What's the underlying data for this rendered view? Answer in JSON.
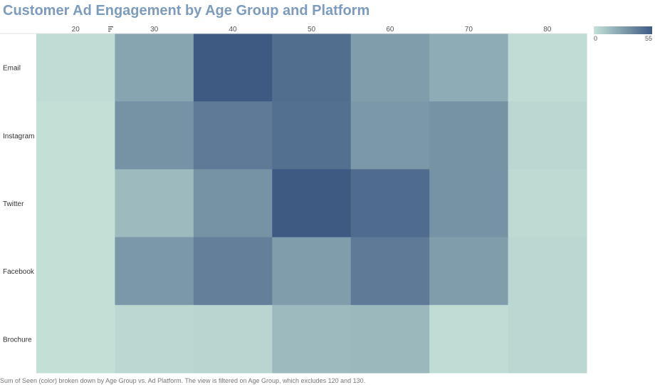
{
  "chart_data": {
    "type": "heatmap",
    "title": "Customer Ad Engagement by Age Group and Platform",
    "x_categories": [
      "20",
      "30",
      "40",
      "50",
      "60",
      "70",
      "80"
    ],
    "y_categories": [
      "Email",
      "Instagram",
      "Twitter",
      "Facebook",
      "Brochure"
    ],
    "values": [
      [
        2,
        25,
        55,
        47,
        28,
        22,
        2
      ],
      [
        1,
        32,
        42,
        46,
        30,
        32,
        4
      ],
      [
        1,
        16,
        32,
        55,
        48,
        32,
        3
      ],
      [
        1,
        30,
        40,
        28,
        42,
        28,
        4
      ],
      [
        1,
        4,
        5,
        16,
        17,
        2,
        4
      ]
    ],
    "color_scale": {
      "min": 0,
      "max": 55,
      "min_color": "#c4e2d7",
      "max_color": "#3e5a83"
    },
    "legend": {
      "min_label": "0",
      "max_label": "55",
      "position": "top-right"
    },
    "caption": "Sum of Seen (color) broken down by Age Group vs. Ad Platform. The view is filtered on Age Group, which excludes 120 and 130."
  }
}
